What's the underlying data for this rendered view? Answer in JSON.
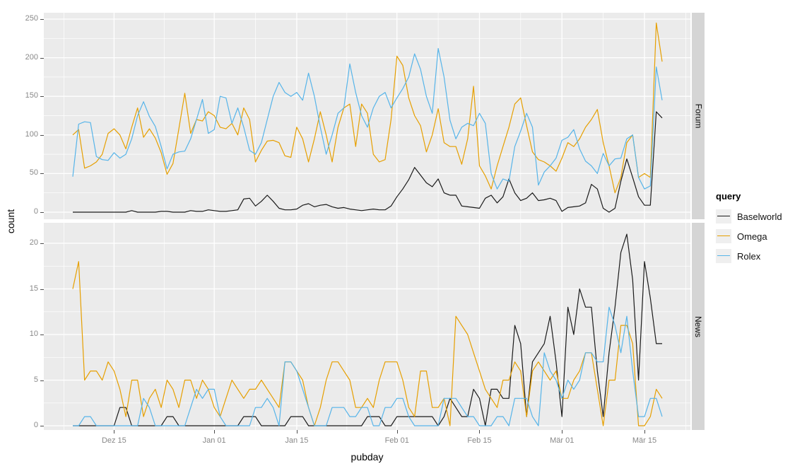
{
  "y_axis": {
    "title": "count"
  },
  "x_axis": {
    "title": "pubday",
    "ticks": [
      {
        "label": "Dez 15",
        "i": 7
      },
      {
        "label": "Jan 01",
        "i": 24
      },
      {
        "label": "Jan 15",
        "i": 38
      },
      {
        "label": "Feb 01",
        "i": 55
      },
      {
        "label": "Feb 15",
        "i": 69
      },
      {
        "label": "Mär 01",
        "i": 83
      },
      {
        "label": "Mär 15",
        "i": 97
      }
    ],
    "minor_i": [
      -1.5,
      15.5,
      31,
      46.5,
      62,
      76,
      90,
      104
    ]
  },
  "facets": {
    "labels": [
      "Forum",
      "News"
    ]
  },
  "legend": {
    "title": "query",
    "entries": [
      {
        "label": "Baselworld",
        "color": "#1A1A1A"
      },
      {
        "label": "Omega",
        "color": "#E69F00"
      },
      {
        "label": "Rolex",
        "color": "#56B4E9"
      }
    ]
  },
  "colors": {
    "panel_bg": "#EBEBEB",
    "grid": "#FFFFFF",
    "strip_bg": "#D5D5D5",
    "tick_label": "#888888",
    "tick_mark": "#4D4D4D",
    "baselworld": "#1A1A1A",
    "omega": "#E69F00",
    "rolex": "#56B4E9"
  },
  "chart_data": [
    {
      "type": "line",
      "facet": "Forum",
      "x_unit": "day",
      "x_start": "Dec 08",
      "x_end": "Mar 18",
      "n_points": 101,
      "ylim": [
        0,
        258
      ],
      "y_ticks": [
        0,
        50,
        100,
        150,
        200,
        250
      ],
      "y_minor": [
        25,
        75,
        125,
        175,
        225
      ],
      "series": [
        {
          "name": "Baselworld",
          "color": "#1A1A1A",
          "values": [
            0,
            0,
            0,
            0,
            0,
            0,
            0,
            0,
            0,
            0,
            2,
            0,
            0,
            0,
            0,
            1,
            1,
            0,
            0,
            0,
            2,
            1,
            1,
            3,
            2,
            1,
            1,
            2,
            3,
            17,
            18,
            8,
            14,
            22,
            14,
            5,
            3,
            3,
            4,
            9,
            11,
            7,
            9,
            10,
            7,
            5,
            6,
            4,
            3,
            2,
            3,
            4,
            3,
            3,
            8,
            20,
            30,
            42,
            58,
            48,
            38,
            33,
            43,
            25,
            22,
            22,
            8,
            7,
            6,
            5,
            18,
            22,
            12,
            20,
            43,
            25,
            15,
            18,
            25,
            15,
            16,
            18,
            15,
            1,
            6,
            7,
            8,
            12,
            36,
            30,
            5,
            0,
            5,
            40,
            69,
            45,
            20,
            9,
            9,
            130,
            122
          ]
        },
        {
          "name": "Omega",
          "color": "#E69F00",
          "values": [
            100,
            107,
            57,
            60,
            65,
            75,
            102,
            108,
            100,
            82,
            110,
            135,
            97,
            108,
            96,
            77,
            49,
            63,
            108,
            154,
            102,
            120,
            118,
            130,
            125,
            110,
            108,
            115,
            100,
            135,
            120,
            65,
            80,
            92,
            93,
            90,
            73,
            71,
            110,
            95,
            65,
            95,
            130,
            100,
            65,
            110,
            135,
            140,
            85,
            140,
            128,
            75,
            65,
            68,
            120,
            202,
            190,
            148,
            125,
            112,
            78,
            100,
            134,
            90,
            85,
            85,
            62,
            95,
            163,
            60,
            47,
            30,
            60,
            85,
            110,
            140,
            148,
            112,
            78,
            68,
            65,
            60,
            53,
            70,
            90,
            85,
            95,
            110,
            120,
            133,
            90,
            60,
            25,
            45,
            90,
            100,
            45,
            50,
            45,
            245,
            195
          ]
        },
        {
          "name": "Rolex",
          "color": "#56B4E9",
          "values": [
            46,
            114,
            117,
            116,
            72,
            68,
            67,
            77,
            70,
            75,
            95,
            125,
            143,
            124,
            111,
            85,
            56,
            75,
            78,
            79,
            95,
            120,
            146,
            102,
            107,
            150,
            148,
            115,
            135,
            110,
            80,
            75,
            90,
            120,
            150,
            168,
            155,
            150,
            155,
            145,
            180,
            150,
            110,
            75,
            100,
            128,
            135,
            192,
            155,
            125,
            110,
            135,
            150,
            155,
            135,
            148,
            160,
            175,
            205,
            185,
            150,
            128,
            212,
            175,
            119,
            95,
            110,
            115,
            112,
            128,
            115,
            50,
            30,
            43,
            40,
            85,
            105,
            128,
            110,
            35,
            52,
            60,
            70,
            93,
            97,
            107,
            82,
            66,
            60,
            50,
            76,
            60,
            69,
            70,
            95,
            100,
            45,
            30,
            34,
            188,
            145
          ]
        }
      ]
    },
    {
      "type": "line",
      "facet": "News",
      "x_unit": "day",
      "x_start": "Dec 08",
      "x_end": "Mar 18",
      "n_points": 101,
      "ylim": [
        0,
        22
      ],
      "y_ticks": [
        0,
        5,
        10,
        15,
        20
      ],
      "y_minor": [
        2.5,
        7.5,
        12.5,
        17.5
      ],
      "series": [
        {
          "name": "Baselworld",
          "color": "#1A1A1A",
          "values": [
            0,
            0,
            0,
            0,
            0,
            0,
            0,
            0,
            2,
            2,
            0,
            0,
            0,
            0,
            0,
            0,
            1,
            1,
            0,
            0,
            0,
            0,
            0,
            0,
            0,
            0,
            0,
            0,
            0,
            1,
            1,
            1,
            0,
            0,
            0,
            0,
            0,
            1,
            1,
            1,
            0,
            0,
            0,
            0,
            0,
            0,
            0,
            0,
            0,
            0,
            1,
            1,
            1,
            0,
            0,
            1,
            1,
            1,
            1,
            1,
            1,
            1,
            0,
            1,
            3,
            2,
            1,
            1,
            4,
            3,
            0,
            4,
            4,
            3,
            3,
            11,
            9,
            1,
            7,
            8,
            9,
            12,
            7,
            1,
            13,
            10,
            15,
            13,
            13,
            6,
            1,
            8,
            13,
            19,
            21,
            16,
            5,
            18,
            14,
            9,
            9
          ]
        },
        {
          "name": "Omega",
          "color": "#E69F00",
          "values": [
            15,
            18,
            5,
            6,
            6,
            5,
            7,
            6,
            4,
            1,
            5,
            5,
            1,
            3,
            4,
            2,
            5,
            4,
            2,
            5,
            5,
            3,
            5,
            4,
            2,
            1,
            3,
            5,
            4,
            3,
            4,
            4,
            5,
            4,
            3,
            2,
            7,
            7,
            6,
            5,
            2,
            0,
            2,
            5,
            7,
            7,
            6,
            5,
            2,
            2,
            3,
            2,
            5,
            7,
            7,
            7,
            5,
            2,
            1,
            6,
            6,
            2,
            2,
            3,
            0,
            12,
            11,
            10,
            8,
            6,
            4,
            3,
            2,
            5,
            5,
            7,
            6,
            1,
            6,
            7,
            6,
            5,
            6,
            3,
            3,
            5,
            6,
            8,
            8,
            4,
            0,
            5,
            5,
            11,
            11,
            9,
            0,
            0,
            1,
            4,
            3
          ]
        },
        {
          "name": "Rolex",
          "color": "#56B4E9",
          "values": [
            0,
            0,
            1,
            1,
            0,
            0,
            0,
            0,
            0,
            0,
            0,
            0,
            3,
            2,
            0,
            0,
            0,
            0,
            0,
            0,
            2,
            4,
            3,
            4,
            4,
            1,
            0,
            0,
            0,
            0,
            0,
            2,
            2,
            3,
            2,
            0,
            7,
            7,
            6,
            4,
            2,
            0,
            0,
            0,
            2,
            2,
            2,
            1,
            1,
            2,
            2,
            0,
            0,
            2,
            2,
            3,
            3,
            1,
            0,
            0,
            0,
            0,
            0,
            3,
            3,
            3,
            2,
            1,
            1,
            0,
            0,
            0,
            1,
            1,
            0,
            3,
            3,
            3,
            1,
            0,
            8,
            6,
            5,
            3,
            5,
            4,
            5,
            8,
            8,
            7,
            7,
            13,
            11,
            8,
            12,
            6,
            1,
            1,
            3,
            3,
            1
          ]
        }
      ]
    }
  ]
}
